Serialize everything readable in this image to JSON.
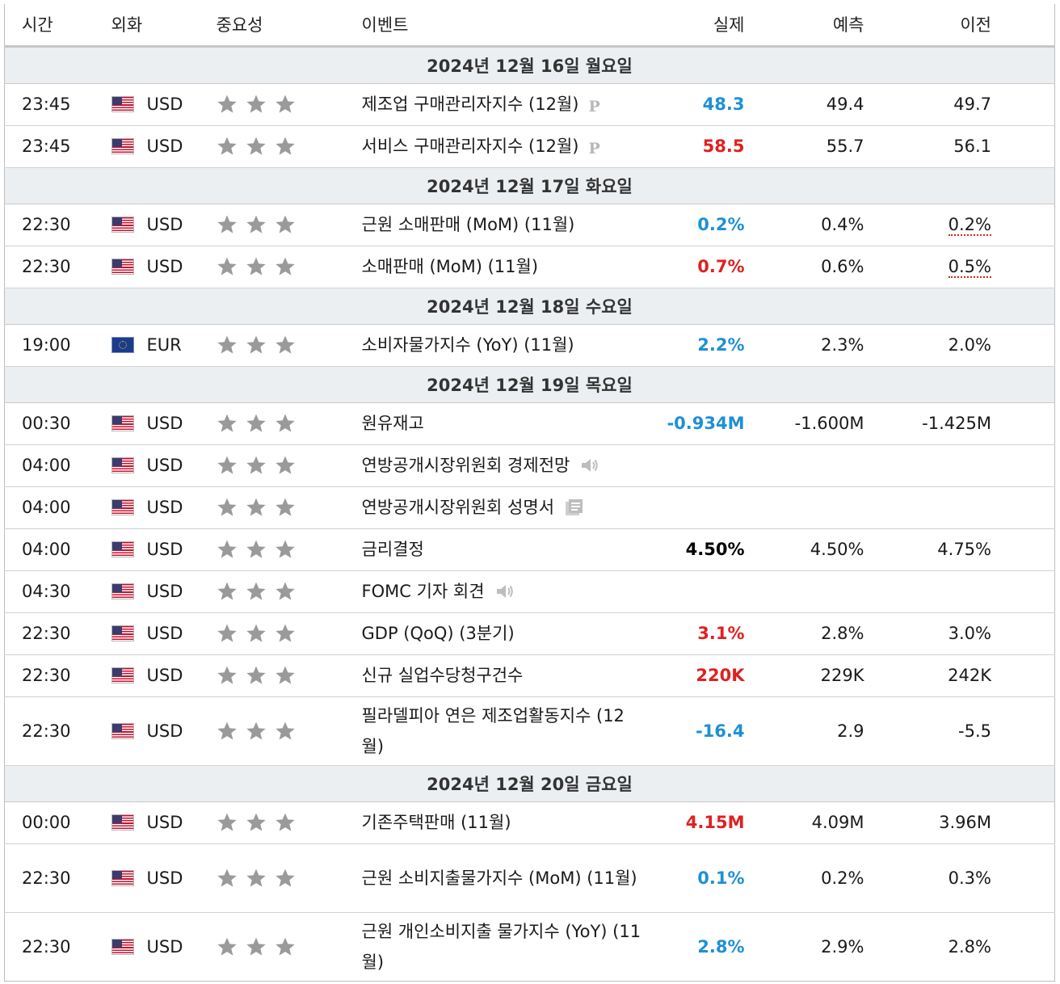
{
  "columns": {
    "time": "시간",
    "currency": "외화",
    "importance": "중요성",
    "event": "이벤트",
    "actual": "실제",
    "forecast": "예측",
    "previous": "이전"
  },
  "colors": {
    "beat": "#1e90d6",
    "miss": "#e02020",
    "neutral": "#000000",
    "day_bg": "#eceff2"
  },
  "days": [
    {
      "label": "2024년 12월 16일 월요일",
      "events": [
        {
          "time": "23:45",
          "flag": "us-flag-icon",
          "currency": "USD",
          "stars": 3,
          "event": "제조업 구매관리자지수 (12월)",
          "badge": "P",
          "actual": "48.3",
          "actual_color": "blue",
          "forecast": "49.4",
          "previous": "49.7"
        },
        {
          "time": "23:45",
          "flag": "us-flag-icon",
          "currency": "USD",
          "stars": 3,
          "event": "서비스 구매관리자지수 (12월)",
          "badge": "P",
          "actual": "58.5",
          "actual_color": "red",
          "forecast": "55.7",
          "previous": "56.1"
        }
      ]
    },
    {
      "label": "2024년 12월 17일 화요일",
      "events": [
        {
          "time": "22:30",
          "flag": "us-flag-icon",
          "currency": "USD",
          "stars": 3,
          "event": "근원 소매판매 (MoM) (11월)",
          "actual": "0.2%",
          "actual_color": "blue",
          "forecast": "0.4%",
          "previous": "0.2%",
          "previous_revised": true
        },
        {
          "time": "22:30",
          "flag": "us-flag-icon",
          "currency": "USD",
          "stars": 3,
          "event": "소매판매 (MoM) (11월)",
          "actual": "0.7%",
          "actual_color": "red",
          "forecast": "0.6%",
          "previous": "0.5%",
          "previous_revised": true
        }
      ]
    },
    {
      "label": "2024년 12월 18일 수요일",
      "events": [
        {
          "time": "19:00",
          "flag": "eu-flag-icon",
          "currency": "EUR",
          "stars": 3,
          "event": "소비자물가지수 (YoY) (11월)",
          "actual": "2.2%",
          "actual_color": "blue",
          "forecast": "2.3%",
          "previous": "2.0%"
        }
      ]
    },
    {
      "label": "2024년 12월 19일 목요일",
      "events": [
        {
          "time": "00:30",
          "flag": "us-flag-icon",
          "currency": "USD",
          "stars": 3,
          "event": "원유재고",
          "actual": "-0.934M",
          "actual_color": "blue",
          "forecast": "-1.600M",
          "previous": "-1.425M"
        },
        {
          "time": "04:00",
          "flag": "us-flag-icon",
          "currency": "USD",
          "stars": 3,
          "event": "연방공개시장위원회 경제전망",
          "icon": "speaker-icon",
          "actual": "",
          "forecast": "",
          "previous": ""
        },
        {
          "time": "04:00",
          "flag": "us-flag-icon",
          "currency": "USD",
          "stars": 3,
          "event": "연방공개시장위원회 성명서",
          "icon": "document-icon",
          "actual": "",
          "forecast": "",
          "previous": ""
        },
        {
          "time": "04:00",
          "flag": "us-flag-icon",
          "currency": "USD",
          "stars": 3,
          "event": "금리결정",
          "actual": "4.50%",
          "actual_color": "black",
          "forecast": "4.50%",
          "previous": "4.75%"
        },
        {
          "time": "04:30",
          "flag": "us-flag-icon",
          "currency": "USD",
          "stars": 3,
          "event": "FOMC 기자 회견",
          "icon": "speaker-icon",
          "actual": "",
          "forecast": "",
          "previous": ""
        },
        {
          "time": "22:30",
          "flag": "us-flag-icon",
          "currency": "USD",
          "stars": 3,
          "event": "GDP (QoQ) (3분기)",
          "actual": "3.1%",
          "actual_color": "red",
          "forecast": "2.8%",
          "previous": "3.0%"
        },
        {
          "time": "22:30",
          "flag": "us-flag-icon",
          "currency": "USD",
          "stars": 3,
          "event": "신규 실업수당청구건수",
          "actual": "220K",
          "actual_color": "red",
          "forecast": "229K",
          "previous": "242K"
        },
        {
          "time": "22:30",
          "flag": "us-flag-icon",
          "currency": "USD",
          "stars": 3,
          "event": "필라델피아 연은 제조업활동지수 (12월)",
          "tall": true,
          "actual": "-16.4",
          "actual_color": "blue",
          "forecast": "2.9",
          "previous": "-5.5"
        }
      ]
    },
    {
      "label": "2024년 12월 20일 금요일",
      "events": [
        {
          "time": "00:00",
          "flag": "us-flag-icon",
          "currency": "USD",
          "stars": 3,
          "event": "기존주택판매 (11월)",
          "actual": "4.15M",
          "actual_color": "red",
          "forecast": "4.09M",
          "previous": "3.96M"
        },
        {
          "time": "22:30",
          "flag": "us-flag-icon",
          "currency": "USD",
          "stars": 3,
          "event": "근원 소비지출물가지수 (MoM) (11월)",
          "tall": true,
          "actual": "0.1%",
          "actual_color": "blue",
          "forecast": "0.2%",
          "previous": "0.3%"
        },
        {
          "time": "22:30",
          "flag": "us-flag-icon",
          "currency": "USD",
          "stars": 3,
          "event": "근원 개인소비지출 물가지수 (YoY) (11월)",
          "tall": true,
          "actual": "2.8%",
          "actual_color": "blue",
          "forecast": "2.9%",
          "previous": "2.8%"
        }
      ]
    }
  ]
}
